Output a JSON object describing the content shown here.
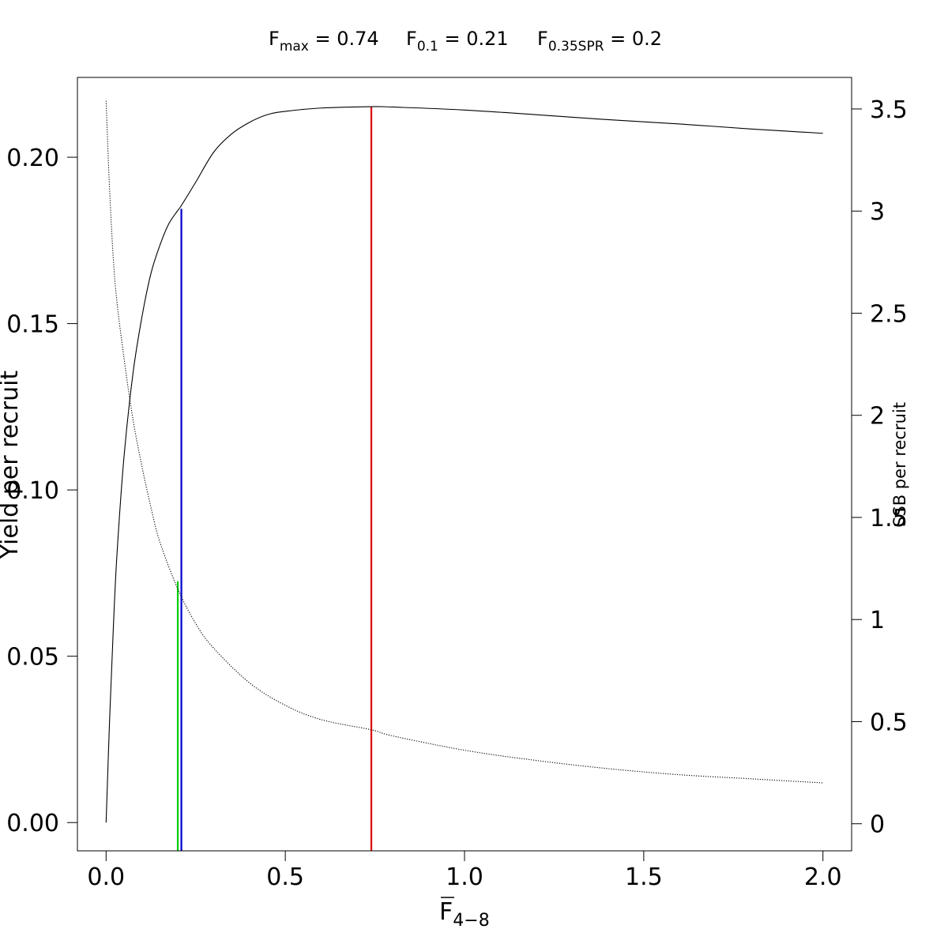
{
  "header": {
    "fmax": {
      "base": "F",
      "sub": "max",
      "rest": " = 0.74"
    },
    "f01": {
      "base": "F",
      "sub": "0.1",
      "rest": " = 0.21"
    },
    "fspr": {
      "base": "F",
      "sub": "0.35SPR",
      "rest": " = 0.2"
    }
  },
  "chart_data": {
    "type": "line",
    "xlabel": {
      "base": "F",
      "sub": "4−8"
    },
    "ylabel": "Yield per recruit",
    "ylabel_right": "SSB per recruit",
    "xlim": [
      -0.08,
      2.08
    ],
    "ylim": [
      -0.0085,
      0.224
    ],
    "ylim_right": [
      -0.1326,
      3.6545
    ],
    "x_ticks": [
      0.0,
      0.5,
      1.0,
      1.5,
      2.0
    ],
    "x_tick_labels": [
      "0.0",
      "0.5",
      "1.0",
      "1.5",
      "2.0"
    ],
    "y_ticks": [
      0.0,
      0.05,
      0.1,
      0.15,
      0.2
    ],
    "y_tick_labels": [
      "0.00",
      "0.05",
      "0.10",
      "0.15",
      "0.20"
    ],
    "y_ticks_right": [
      0,
      0.5,
      1,
      1.5,
      2,
      2.5,
      3,
      3.5
    ],
    "y_tick_labels_right": [
      "0",
      "0.5",
      "1",
      "1.5",
      "2",
      "2.5",
      "3",
      "3.5"
    ],
    "series": [
      {
        "axis": "left",
        "style": "solid",
        "x": [
          0.0,
          0.01,
          0.02,
          0.03,
          0.05,
          0.075,
          0.1,
          0.125,
          0.15,
          0.175,
          0.2,
          0.21,
          0.25,
          0.3,
          0.35,
          0.4,
          0.45,
          0.5,
          0.6,
          0.74,
          0.8,
          1.0,
          1.2,
          1.4,
          1.6,
          1.8,
          2.0
        ],
        "y": [
          0.0,
          0.0315,
          0.058,
          0.08,
          0.11,
          0.135,
          0.152,
          0.165,
          0.1735,
          0.18,
          0.184,
          0.1855,
          0.1925,
          0.2015,
          0.207,
          0.2105,
          0.2128,
          0.2138,
          0.2148,
          0.2152,
          0.2151,
          0.2142,
          0.2128,
          0.2113,
          0.21,
          0.2085,
          0.2072
        ]
      },
      {
        "axis": "right",
        "style": "dotted",
        "x": [
          0.0,
          0.01,
          0.025,
          0.05,
          0.075,
          0.1,
          0.125,
          0.15,
          0.2,
          0.25,
          0.3,
          0.4,
          0.5,
          0.6,
          0.74,
          0.8,
          1.0,
          1.2,
          1.4,
          1.6,
          1.8,
          2.0
        ],
        "y": [
          3.54,
          3.1,
          2.65,
          2.28,
          1.98,
          1.75,
          1.55,
          1.38,
          1.15,
          0.98,
          0.86,
          0.69,
          0.58,
          0.51,
          0.46,
          0.43,
          0.36,
          0.31,
          0.27,
          0.24,
          0.22,
          0.2
        ]
      }
    ],
    "reference_lines": [
      {
        "label": "Fmax",
        "x": 0.74,
        "y_top": 0.2152,
        "color": "#dd0000"
      },
      {
        "label": "F0.1",
        "x": 0.21,
        "y_top": 0.1845,
        "color": "#0000cc"
      },
      {
        "label": "F0.35SPR",
        "x": 0.2,
        "y_top": 0.0725,
        "color": "#00cc00"
      }
    ]
  }
}
